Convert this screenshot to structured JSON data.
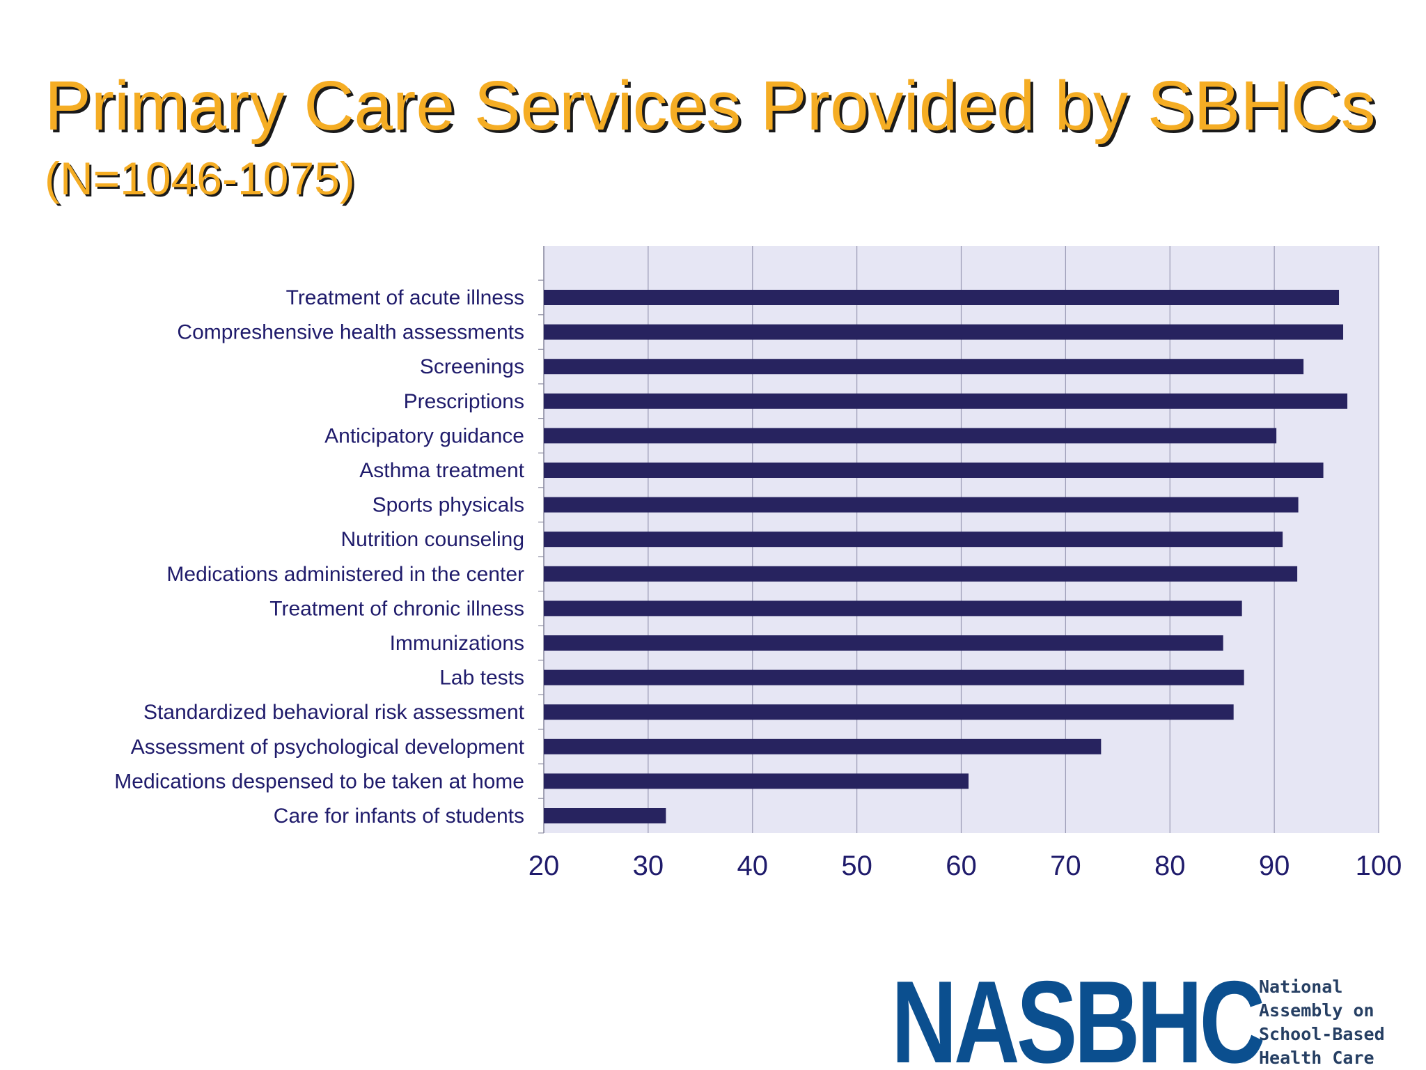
{
  "title": "Primary Care Services Provided by SBHCs",
  "subtitle": "(N=1046-1075)",
  "logo": {
    "mark": "NASBHC",
    "lines": [
      "National",
      "Assembly on",
      "School-Based",
      "Health Care"
    ]
  },
  "colors": {
    "title": "#f5ad24",
    "title_shadow": "#1a1a1a",
    "bar": "#27235f",
    "plot_background": "#e6e6f4",
    "gridline": "#9a9ab4",
    "label_text": "#1f1b6b",
    "logo": "#0b4f8f"
  },
  "chart_data": {
    "type": "bar",
    "orientation": "horizontal",
    "categories": [
      "Treatment of acute illness",
      "Compreshensive health assessments",
      "Screenings",
      "Prescriptions",
      "Anticipatory guidance",
      "Asthma treatment",
      "Sports physicals",
      "Nutrition counseling",
      "Medications administered in the center",
      "Treatment of chronic illness",
      "Immunizations",
      "Lab tests",
      "Standardized behavioral risk assessment",
      "Assessment of psychological development",
      "Medications despensed to be taken at home",
      "Care for infants of students"
    ],
    "values": [
      96.2,
      96.6,
      92.8,
      97.0,
      90.2,
      94.7,
      92.3,
      90.8,
      92.2,
      86.9,
      85.1,
      87.1,
      86.1,
      73.4,
      60.7,
      31.7
    ],
    "xlim": [
      20,
      100
    ],
    "xticks": [
      20,
      30,
      40,
      50,
      60,
      70,
      80,
      90,
      100
    ],
    "xlabel": "",
    "ylabel": "",
    "grid": true,
    "legend": "none"
  }
}
